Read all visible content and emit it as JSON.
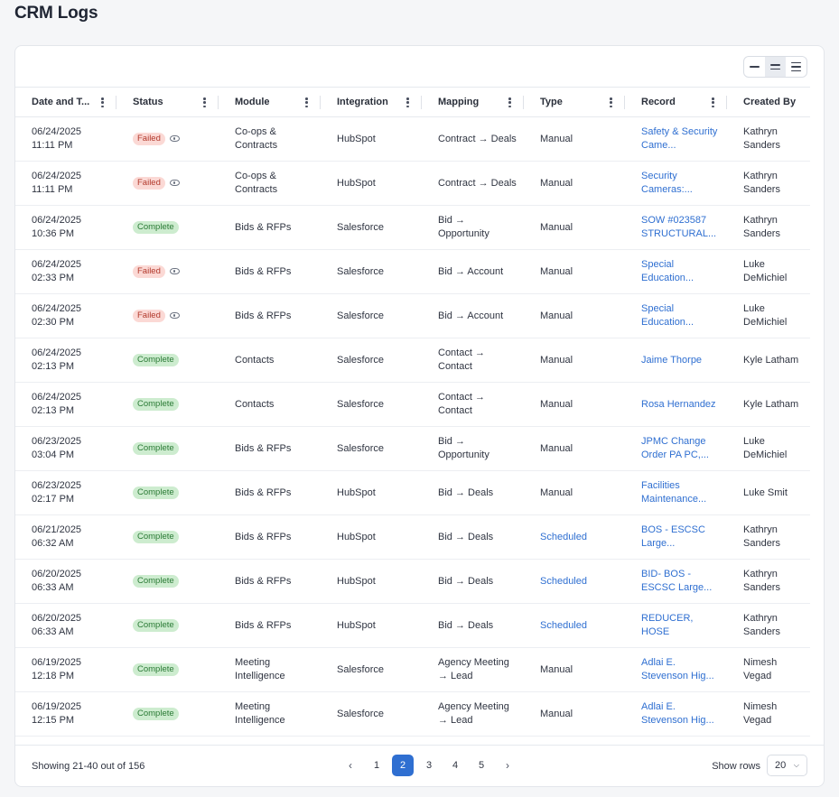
{
  "page": {
    "title": "CRM Logs"
  },
  "table": {
    "columns": [
      "Date and T...",
      "Status",
      "Module",
      "Integration",
      "Mapping",
      "Type",
      "Record",
      "Created By"
    ],
    "rows": [
      {
        "date": "06/24/2025",
        "time": "11:11 PM",
        "status": "Failed",
        "module": "Co-ops & Contracts",
        "integration": "HubSpot",
        "mapping": "Contract → Deals",
        "type": "Manual",
        "record": "Safety & Security Came...",
        "created_by": "Kathryn Sanders"
      },
      {
        "date": "06/24/2025",
        "time": "11:11 PM",
        "status": "Failed",
        "module": "Co-ops & Contracts",
        "integration": "HubSpot",
        "mapping": "Contract → Deals",
        "type": "Manual",
        "record": "Security Cameras:...",
        "created_by": "Kathryn Sanders"
      },
      {
        "date": "06/24/2025",
        "time": "10:36 PM",
        "status": "Complete",
        "module": "Bids & RFPs",
        "integration": "Salesforce",
        "mapping": "Bid → Opportunity",
        "type": "Manual",
        "record": "SOW #023587 STRUCTURAL...",
        "created_by": "Kathryn Sanders"
      },
      {
        "date": "06/24/2025",
        "time": "02:33 PM",
        "status": "Failed",
        "module": "Bids & RFPs",
        "integration": "Salesforce",
        "mapping": "Bid → Account",
        "type": "Manual",
        "record": "Special Education...",
        "created_by": "Luke DeMichiel"
      },
      {
        "date": "06/24/2025",
        "time": "02:30 PM",
        "status": "Failed",
        "module": "Bids & RFPs",
        "integration": "Salesforce",
        "mapping": "Bid → Account",
        "type": "Manual",
        "record": "Special Education...",
        "created_by": "Luke DeMichiel"
      },
      {
        "date": "06/24/2025",
        "time": "02:13 PM",
        "status": "Complete",
        "module": "Contacts",
        "integration": "Salesforce",
        "mapping": "Contact → Contact",
        "type": "Manual",
        "record": "Jaime Thorpe",
        "created_by": "Kyle Latham"
      },
      {
        "date": "06/24/2025",
        "time": "02:13 PM",
        "status": "Complete",
        "module": "Contacts",
        "integration": "Salesforce",
        "mapping": "Contact → Contact",
        "type": "Manual",
        "record": "Rosa Hernandez",
        "created_by": "Kyle Latham"
      },
      {
        "date": "06/23/2025",
        "time": "03:04 PM",
        "status": "Complete",
        "module": "Bids & RFPs",
        "integration": "Salesforce",
        "mapping": "Bid → Opportunity",
        "type": "Manual",
        "record": "JPMC Change Order PA PC,...",
        "created_by": "Luke DeMichiel"
      },
      {
        "date": "06/23/2025",
        "time": "02:17 PM",
        "status": "Complete",
        "module": "Bids & RFPs",
        "integration": "HubSpot",
        "mapping": "Bid → Deals",
        "type": "Manual",
        "record": "Facilities Maintenance...",
        "created_by": "Luke Smit"
      },
      {
        "date": "06/21/2025",
        "time": "06:32 AM",
        "status": "Complete",
        "module": "Bids & RFPs",
        "integration": "HubSpot",
        "mapping": "Bid → Deals",
        "type": "Scheduled",
        "record": "BOS - ESCSC Large...",
        "created_by": "Kathryn Sanders"
      },
      {
        "date": "06/20/2025",
        "time": "06:33 AM",
        "status": "Complete",
        "module": "Bids & RFPs",
        "integration": "HubSpot",
        "mapping": "Bid → Deals",
        "type": "Scheduled",
        "record": "BID- BOS - ESCSC Large...",
        "created_by": "Kathryn Sanders"
      },
      {
        "date": "06/20/2025",
        "time": "06:33 AM",
        "status": "Complete",
        "module": "Bids & RFPs",
        "integration": "HubSpot",
        "mapping": "Bid → Deals",
        "type": "Scheduled",
        "record": "REDUCER, HOSE",
        "created_by": "Kathryn Sanders"
      },
      {
        "date": "06/19/2025",
        "time": "12:18 PM",
        "status": "Complete",
        "module": "Meeting Intelligence",
        "integration": "Salesforce",
        "mapping": "Agency Meeting → Lead",
        "type": "Manual",
        "record": "Adlai E. Stevenson Hig...",
        "created_by": "Nimesh Vegad"
      },
      {
        "date": "06/19/2025",
        "time": "12:15 PM",
        "status": "Complete",
        "module": "Meeting Intelligence",
        "integration": "Salesforce",
        "mapping": "Agency Meeting → Lead",
        "type": "Manual",
        "record": "Adlai E. Stevenson Hig...",
        "created_by": "Nimesh Vegad"
      }
    ]
  },
  "footer": {
    "showing": "Showing 21-40 out of 156",
    "pages": [
      "1",
      "2",
      "3",
      "4",
      "5"
    ],
    "current_page": "2",
    "prev_icon": "chevron-left-icon",
    "next_icon": "chevron-right-icon",
    "show_rows_label": "Show rows",
    "rows_value": "20"
  },
  "colors": {
    "link": "#2f6fd1",
    "failed_bg": "#fbd9d5",
    "complete_bg": "#cdeccf",
    "active_page": "#2f6fd1"
  }
}
